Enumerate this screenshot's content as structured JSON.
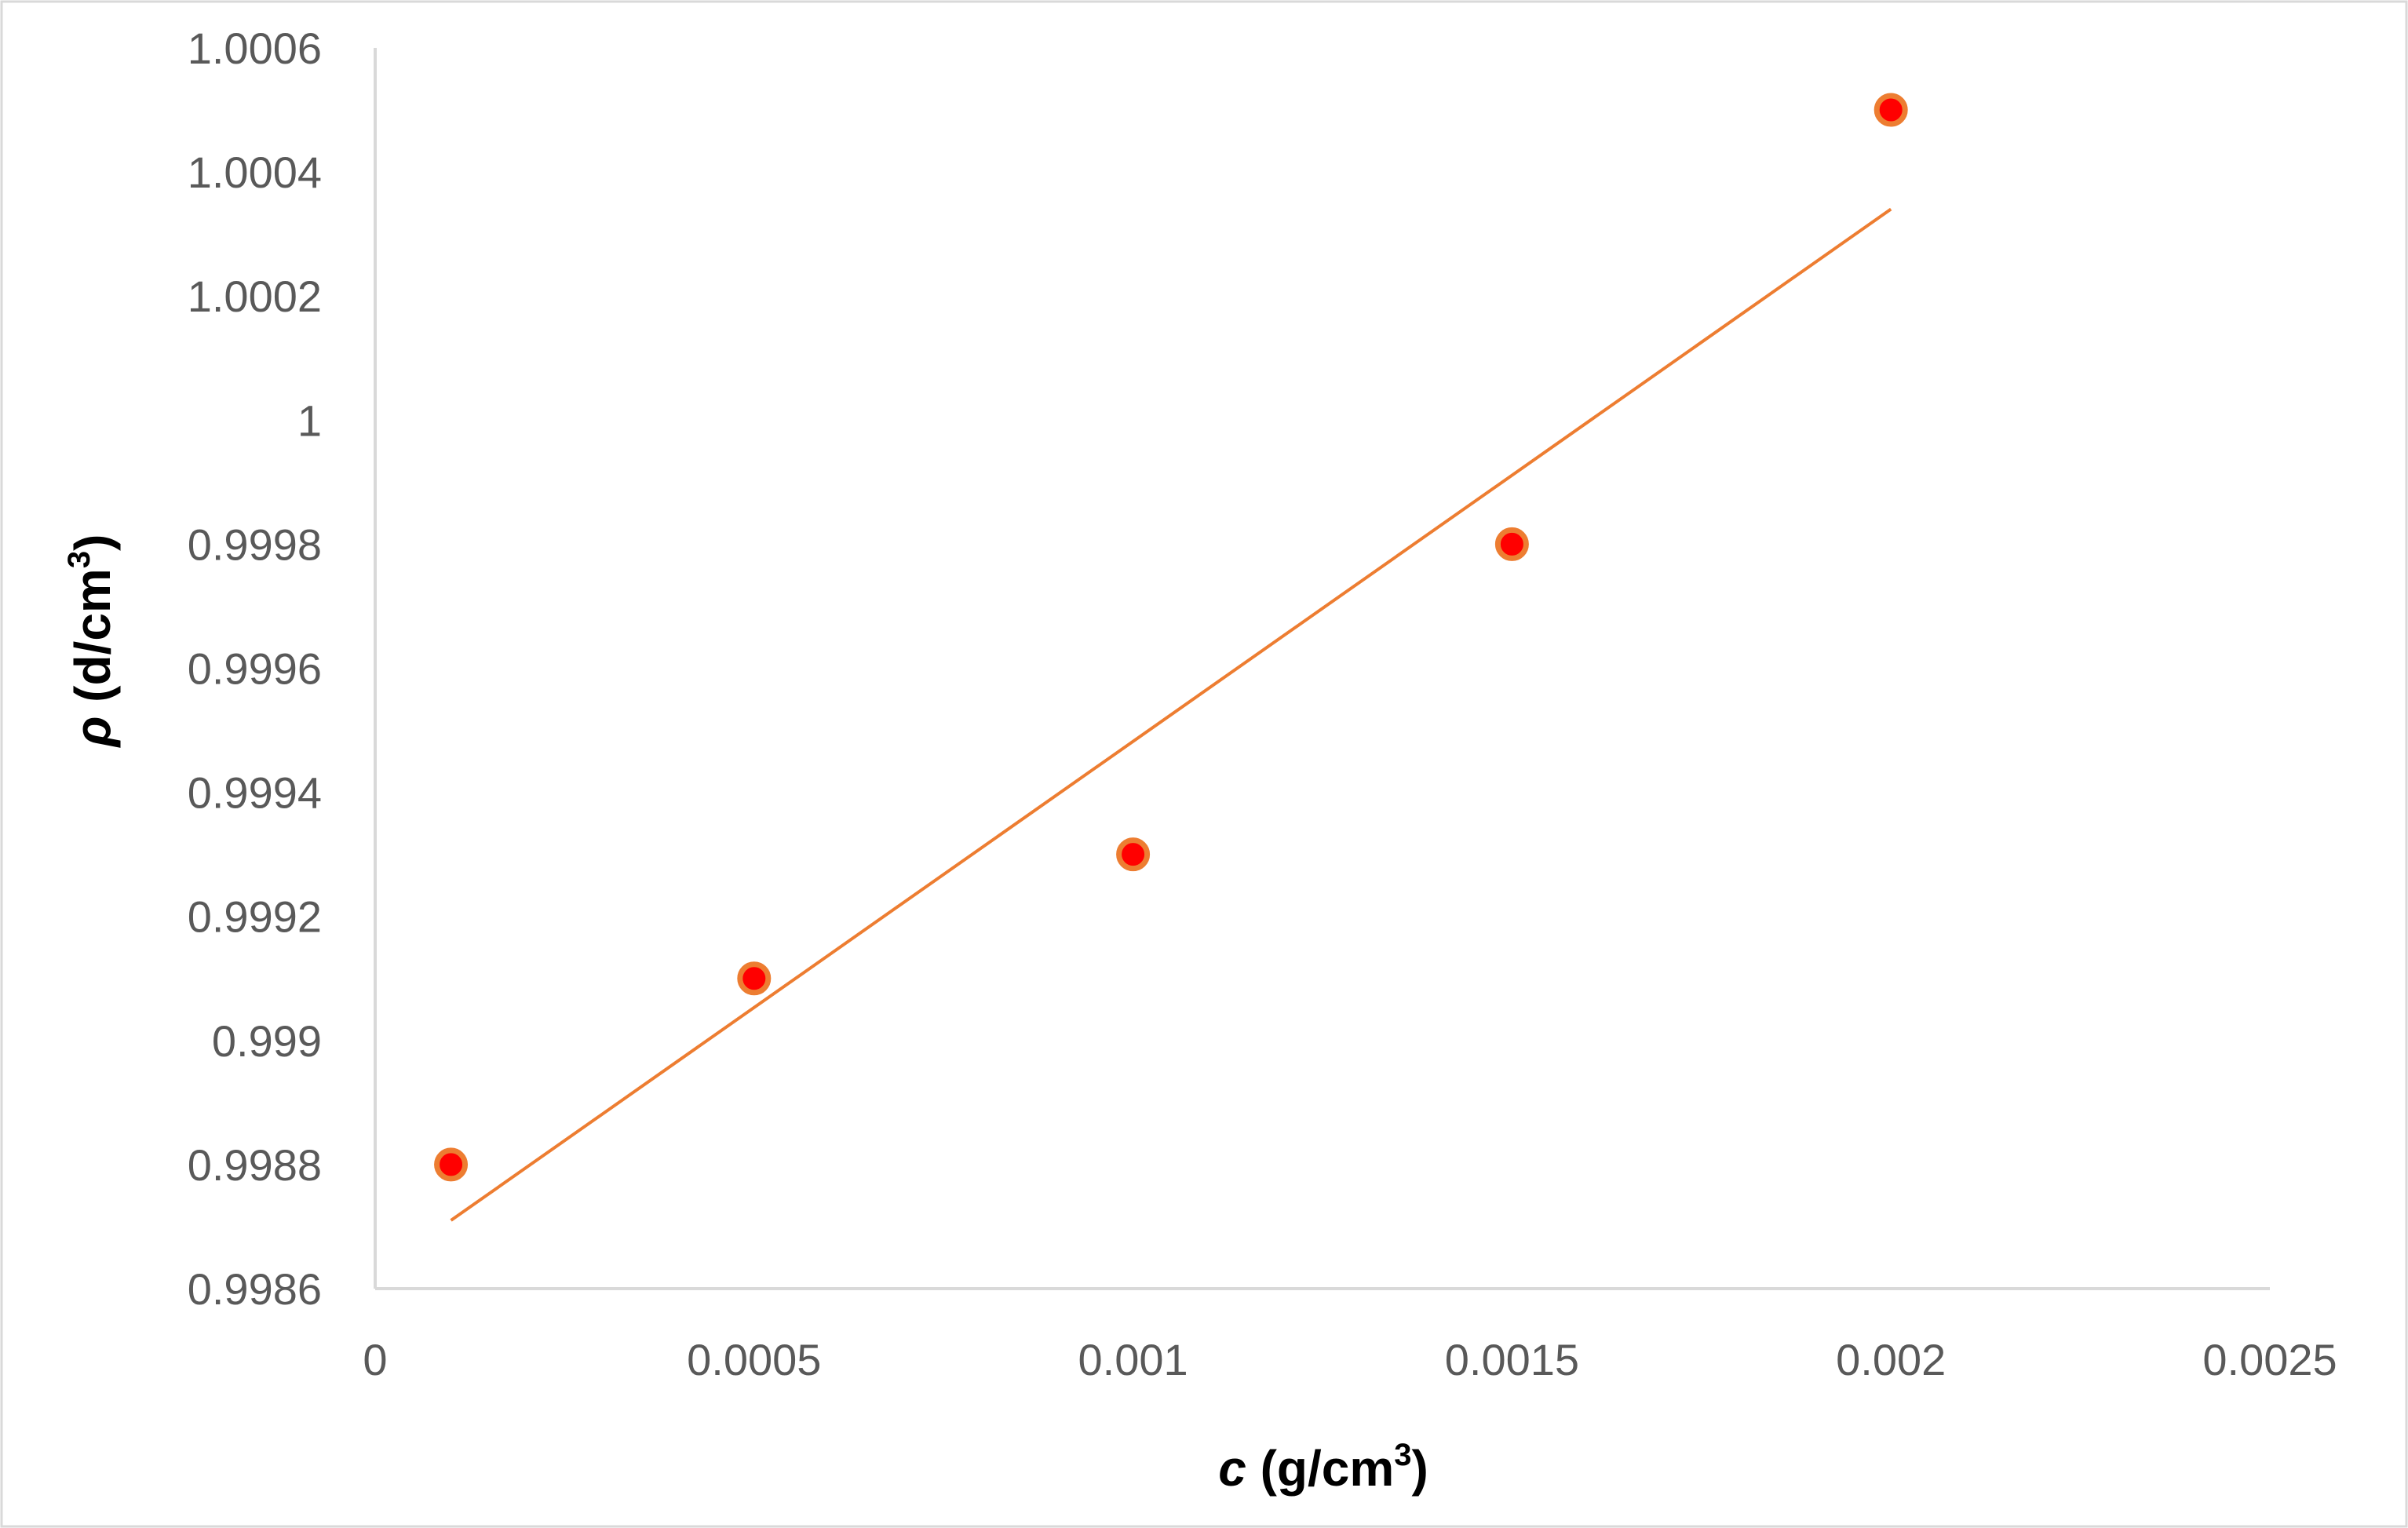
{
  "chart_data": {
    "type": "scatter",
    "title": "",
    "xlabel": {
      "symbol": "c",
      "unit_prefix": " (g/cm",
      "unit_superscript": "3",
      "unit_suffix": ")"
    },
    "ylabel": {
      "symbol": "ρ",
      "unit_prefix": " (d/cm",
      "unit_superscript": "3",
      "unit_suffix": ")"
    },
    "xlim": [
      0,
      0.0025
    ],
    "ylim": [
      0.9986,
      1.0006
    ],
    "x_ticks": [
      0,
      0.0005,
      0.001,
      0.0015,
      0.002,
      0.0025
    ],
    "x_tick_labels": [
      "0",
      "0.0005",
      "0.001",
      "0.0015",
      "0.002",
      "0.0025"
    ],
    "y_ticks": [
      0.9986,
      0.9988,
      0.999,
      0.9992,
      0.9994,
      0.9996,
      0.9998,
      1,
      1.0002,
      1.0004,
      1.0006
    ],
    "y_tick_labels": [
      "0.9986",
      "0.9988",
      "0.999",
      "0.9992",
      "0.9994",
      "0.9996",
      "0.9998",
      "1",
      "1.0002",
      "1.0004",
      "1.0006"
    ],
    "grid": false,
    "legend": "none",
    "series": [
      {
        "x": [
          0.0001,
          0.0005,
          0.001,
          0.0015,
          0.002
        ],
        "y": [
          0.9988,
          0.9991,
          0.9993,
          0.9998,
          1.0005
        ],
        "marker_fill": "#ff0000",
        "marker_edge": "#ed7d31"
      }
    ],
    "trendline": {
      "type": "linear",
      "x_start": 0.0001,
      "x_end": 0.002,
      "y_start": 0.99871,
      "y_end": 1.00034,
      "color": "#ed7d31"
    },
    "colors": {
      "axis": "#d9d9d9",
      "tick_text": "#595959",
      "title_text": "#000000",
      "frame": "#d9d9d9"
    }
  }
}
